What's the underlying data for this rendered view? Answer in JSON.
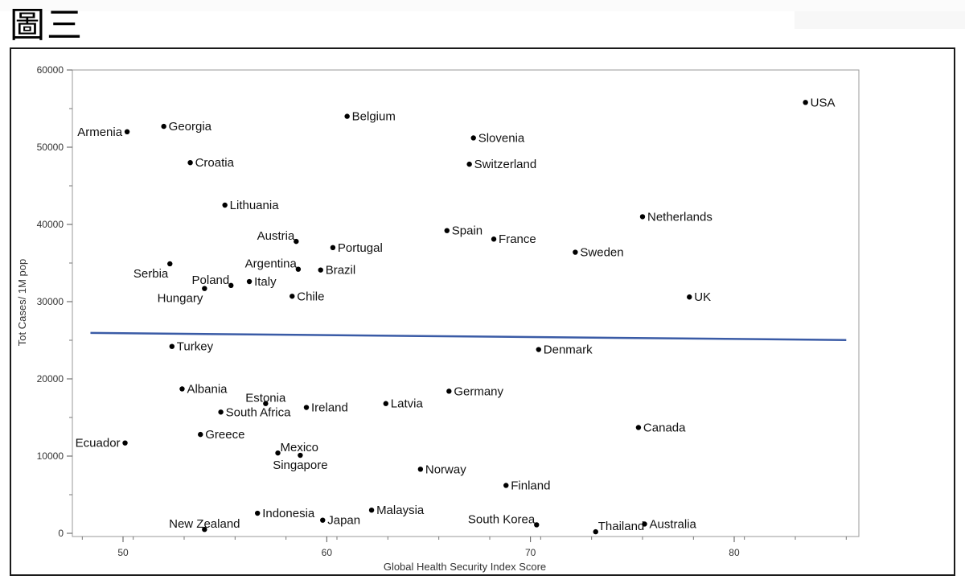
{
  "figure": {
    "label": "圖三"
  },
  "chart_data": {
    "type": "scatter",
    "xlabel": "Global Health Security Index Score",
    "ylabel": "Tot Cases/ 1M pop",
    "xlim": [
      47.5,
      86.5
    ],
    "ylim": [
      -500,
      60000
    ],
    "xticks": [
      50,
      60,
      70,
      80
    ],
    "yticks": [
      0,
      10000,
      20000,
      30000,
      40000,
      50000,
      60000
    ],
    "grid": false,
    "trend_line": {
      "x": [
        48.4,
        85.5
      ],
      "y": [
        25950,
        25030
      ],
      "color": "#3a5ba6"
    },
    "points": [
      {
        "name": "USA",
        "x": 83.5,
        "y": 55800,
        "anchor": "right"
      },
      {
        "name": "Armenia",
        "x": 50.2,
        "y": 52000,
        "anchor": "left"
      },
      {
        "name": "Georgia",
        "x": 52.0,
        "y": 52700,
        "anchor": "right"
      },
      {
        "name": "Belgium",
        "x": 61.0,
        "y": 54000,
        "anchor": "right"
      },
      {
        "name": "Slovenia",
        "x": 67.2,
        "y": 51200,
        "anchor": "right"
      },
      {
        "name": "Croatia",
        "x": 53.3,
        "y": 48000,
        "anchor": "right"
      },
      {
        "name": "Switzerland",
        "x": 67.0,
        "y": 47800,
        "anchor": "right"
      },
      {
        "name": "Lithuania",
        "x": 55.0,
        "y": 42500,
        "anchor": "right"
      },
      {
        "name": "Netherlands",
        "x": 75.5,
        "y": 41000,
        "anchor": "right"
      },
      {
        "name": "Spain",
        "x": 65.9,
        "y": 39200,
        "anchor": "right"
      },
      {
        "name": "Austria",
        "x": 58.5,
        "y": 37800,
        "anchor": "above-left"
      },
      {
        "name": "France",
        "x": 68.2,
        "y": 38100,
        "anchor": "right"
      },
      {
        "name": "Portugal",
        "x": 60.3,
        "y": 37000,
        "anchor": "right"
      },
      {
        "name": "Sweden",
        "x": 72.2,
        "y": 36400,
        "anchor": "right"
      },
      {
        "name": "Serbia",
        "x": 52.3,
        "y": 34900,
        "anchor": "below-left"
      },
      {
        "name": "Argentina",
        "x": 58.6,
        "y": 34200,
        "anchor": "above-left"
      },
      {
        "name": "Brazil",
        "x": 59.7,
        "y": 34100,
        "anchor": "right"
      },
      {
        "name": "Poland",
        "x": 55.3,
        "y": 32100,
        "anchor": "above-left"
      },
      {
        "name": "Italy",
        "x": 56.2,
        "y": 32600,
        "anchor": "right"
      },
      {
        "name": "Hungary",
        "x": 54.0,
        "y": 31700,
        "anchor": "below-left"
      },
      {
        "name": "Chile",
        "x": 58.3,
        "y": 30700,
        "anchor": "right"
      },
      {
        "name": "UK",
        "x": 77.8,
        "y": 30600,
        "anchor": "right"
      },
      {
        "name": "Turkey",
        "x": 52.4,
        "y": 24200,
        "anchor": "right"
      },
      {
        "name": "Denmark",
        "x": 70.4,
        "y": 23800,
        "anchor": "right"
      },
      {
        "name": "Albania",
        "x": 52.9,
        "y": 18700,
        "anchor": "right"
      },
      {
        "name": "Germany",
        "x": 66.0,
        "y": 18400,
        "anchor": "right"
      },
      {
        "name": "Estonia",
        "x": 57.0,
        "y": 16800,
        "anchor": "above"
      },
      {
        "name": "Latvia",
        "x": 62.9,
        "y": 16800,
        "anchor": "right"
      },
      {
        "name": "Ireland",
        "x": 59.0,
        "y": 16300,
        "anchor": "right"
      },
      {
        "name": "South Africa",
        "x": 54.8,
        "y": 15700,
        "anchor": "right"
      },
      {
        "name": "Canada",
        "x": 75.3,
        "y": 13700,
        "anchor": "right"
      },
      {
        "name": "Greece",
        "x": 53.8,
        "y": 12800,
        "anchor": "right"
      },
      {
        "name": "Ecuador",
        "x": 50.1,
        "y": 11700,
        "anchor": "left"
      },
      {
        "name": "Mexico",
        "x": 57.6,
        "y": 10400,
        "anchor": "above-right"
      },
      {
        "name": "Singapore",
        "x": 58.7,
        "y": 10100,
        "anchor": "below"
      },
      {
        "name": "Norway",
        "x": 64.6,
        "y": 8300,
        "anchor": "right"
      },
      {
        "name": "Finland",
        "x": 68.8,
        "y": 6200,
        "anchor": "right"
      },
      {
        "name": "Malaysia",
        "x": 62.2,
        "y": 3000,
        "anchor": "right"
      },
      {
        "name": "Indonesia",
        "x": 56.6,
        "y": 2600,
        "anchor": "right"
      },
      {
        "name": "Japan",
        "x": 59.8,
        "y": 1700,
        "anchor": "right"
      },
      {
        "name": "South Korea",
        "x": 70.3,
        "y": 1100,
        "anchor": "above-left"
      },
      {
        "name": "New Zealand",
        "x": 54.0,
        "y": 500,
        "anchor": "above"
      },
      {
        "name": "Thailand",
        "x": 73.2,
        "y": 200,
        "anchor": "above-right"
      },
      {
        "name": "Australia",
        "x": 75.6,
        "y": 1200,
        "anchor": "right"
      }
    ]
  }
}
